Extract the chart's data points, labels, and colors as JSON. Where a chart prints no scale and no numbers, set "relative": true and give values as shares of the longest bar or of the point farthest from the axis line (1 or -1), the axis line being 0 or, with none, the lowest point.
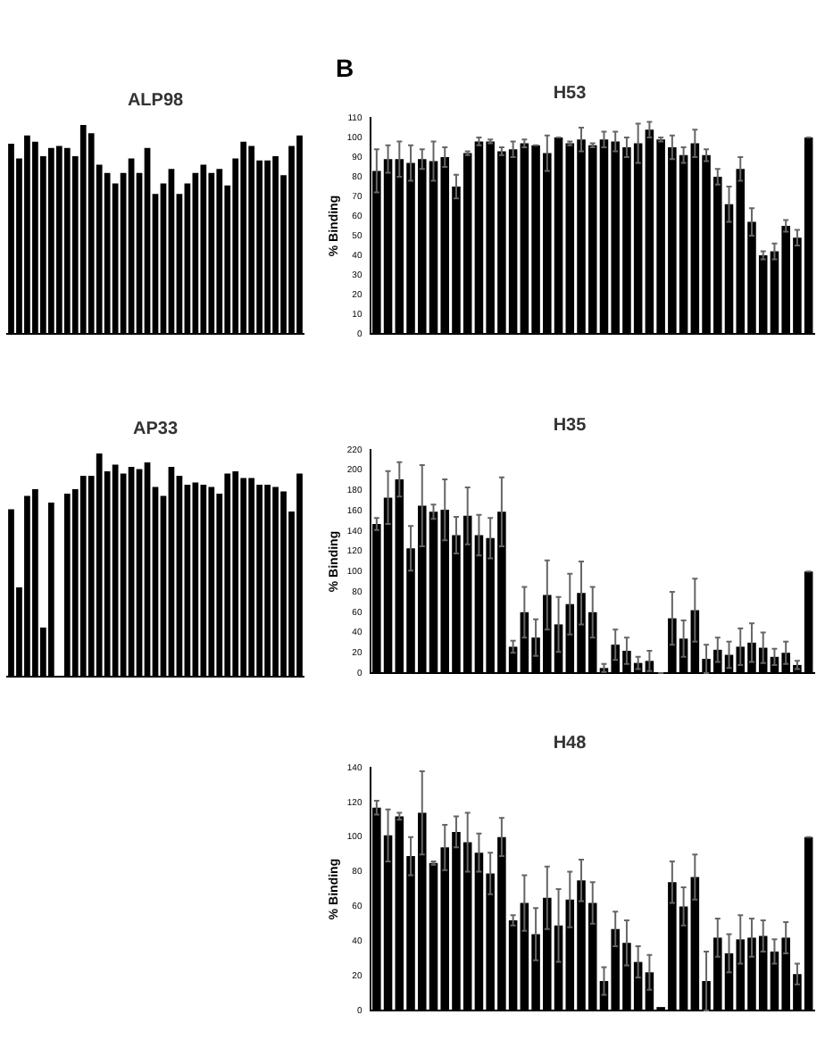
{
  "chart_data": [
    {
      "type": "bar",
      "title": "ALP98",
      "relative": true,
      "tick_labels": false,
      "grid": false,
      "legend": false,
      "categories": [
        null,
        null,
        null,
        null,
        null,
        null,
        null,
        null,
        null,
        null,
        null,
        null,
        null,
        null,
        null,
        null,
        null,
        null,
        null,
        null,
        null,
        null,
        null,
        null,
        null,
        null,
        null,
        null,
        null,
        null,
        null,
        null,
        null,
        null,
        null,
        null,
        null
      ],
      "series": [
        {
          "color": "#000000",
          "values": [
            0.91,
            0.84,
            0.95,
            0.92,
            0.85,
            0.89,
            0.9,
            0.89,
            0.85,
            1,
            0.96,
            0.81,
            0.77,
            0.72,
            0.77,
            0.84,
            0.77,
            0.89,
            0.67,
            0.72,
            0.79,
            0.67,
            0.72,
            0.77,
            0.81,
            0.77,
            0.79,
            0.71,
            0.84,
            0.92,
            0.9,
            0.83,
            0.83,
            0.85,
            0.76,
            0.9,
            0.95
          ]
        }
      ]
    },
    {
      "type": "bar",
      "title": "H53",
      "ylabel": "% Binding",
      "annotations": [
        "B"
      ],
      "tick_labels": "y",
      "grid": false,
      "legend": false,
      "ylim": [
        0,
        110
      ],
      "yticks": [
        0,
        10,
        20,
        30,
        40,
        50,
        60,
        70,
        80,
        90,
        100,
        110
      ],
      "categories": [
        null,
        null,
        null,
        null,
        null,
        null,
        null,
        null,
        null,
        null,
        null,
        null,
        null,
        null,
        null,
        null,
        null,
        null,
        null,
        null,
        null,
        null,
        null,
        null,
        null,
        null,
        null,
        null,
        null,
        null,
        null,
        null,
        null,
        null,
        null,
        null,
        null,
        null,
        null
      ],
      "series": [
        {
          "color": "#000000",
          "values": [
            83,
            89,
            89,
            87,
            89,
            88,
            90,
            75,
            92,
            98,
            98,
            93,
            94,
            97,
            96,
            92,
            100,
            97,
            99,
            96,
            99,
            98,
            95,
            97,
            104,
            99,
            95,
            91,
            97,
            91,
            80,
            66,
            84,
            57,
            40,
            42,
            55,
            49,
            100
          ],
          "errors": [
            11,
            7,
            9,
            9,
            5,
            10,
            5,
            6,
            1,
            2,
            1,
            2,
            4,
            2,
            0,
            9,
            0,
            1,
            6,
            1,
            4,
            5,
            5,
            10,
            4,
            1,
            6,
            4,
            7,
            3,
            4,
            9,
            6,
            7,
            2,
            4,
            3,
            4,
            0
          ]
        }
      ]
    },
    {
      "type": "bar",
      "title": "AP33",
      "relative": true,
      "tick_labels": false,
      "grid": false,
      "legend": false,
      "categories": [
        null,
        null,
        null,
        null,
        null,
        null,
        null,
        null,
        null,
        null,
        null,
        null,
        null,
        null,
        null,
        null,
        null,
        null,
        null,
        null,
        null,
        null,
        null,
        null,
        null,
        null,
        null,
        null,
        null,
        null,
        null,
        null,
        null,
        null,
        null,
        null,
        null
      ],
      "series": [
        {
          "color": "#000000",
          "values": [
            0.75,
            0.4,
            0.81,
            0.84,
            0.22,
            0.78,
            0,
            0.82,
            0.84,
            0.9,
            0.9,
            1,
            0.92,
            0.95,
            0.91,
            0.94,
            0.93,
            0.96,
            0.85,
            0.81,
            0.94,
            0.9,
            0.86,
            0.87,
            0.86,
            0.85,
            0.82,
            0.91,
            0.92,
            0.89,
            0.89,
            0.86,
            0.86,
            0.85,
            0.83,
            0.74,
            0.91
          ]
        }
      ]
    },
    {
      "type": "bar",
      "title": "H35",
      "ylabel": "% Binding",
      "tick_labels": "y",
      "grid": false,
      "legend": false,
      "ylim": [
        0,
        220
      ],
      "yticks": [
        0,
        20,
        40,
        60,
        80,
        100,
        120,
        140,
        160,
        180,
        200,
        220
      ],
      "categories": [
        null,
        null,
        null,
        null,
        null,
        null,
        null,
        null,
        null,
        null,
        null,
        null,
        null,
        null,
        null,
        null,
        null,
        null,
        null,
        null,
        null,
        null,
        null,
        null,
        null,
        null,
        null,
        null,
        null,
        null,
        null,
        null,
        null,
        null,
        null,
        null,
        null,
        null,
        null
      ],
      "series": [
        {
          "color": "#000000",
          "values": [
            147,
            173,
            191,
            123,
            165,
            159,
            161,
            136,
            155,
            136,
            133,
            159,
            26,
            60,
            35,
            77,
            48,
            68,
            79,
            60,
            5,
            28,
            22,
            10,
            12,
            0,
            54,
            34,
            62,
            14,
            23,
            18,
            26,
            30,
            25,
            16,
            20,
            8,
            100
          ],
          "errors": [
            6,
            26,
            17,
            22,
            40,
            7,
            30,
            18,
            28,
            20,
            20,
            34,
            6,
            25,
            18,
            34,
            27,
            30,
            31,
            25,
            4,
            15,
            13,
            6,
            10,
            0,
            26,
            18,
            31,
            14,
            12,
            13,
            18,
            19,
            15,
            8,
            11,
            4,
            0
          ]
        }
      ]
    },
    {
      "type": "bar",
      "title": "H48",
      "ylabel": "% Binding",
      "tick_labels": "y",
      "grid": false,
      "legend": false,
      "ylim": [
        0,
        140
      ],
      "yticks": [
        0,
        20,
        40,
        60,
        80,
        100,
        120,
        140
      ],
      "categories": [
        null,
        null,
        null,
        null,
        null,
        null,
        null,
        null,
        null,
        null,
        null,
        null,
        null,
        null,
        null,
        null,
        null,
        null,
        null,
        null,
        null,
        null,
        null,
        null,
        null,
        null,
        null,
        null,
        null,
        null,
        null,
        null,
        null,
        null,
        null,
        null,
        null,
        null,
        null
      ],
      "series": [
        {
          "color": "#000000",
          "values": [
            117,
            101,
            112,
            89,
            114,
            85,
            94,
            103,
            97,
            91,
            79,
            100,
            52,
            62,
            44,
            65,
            49,
            64,
            75,
            62,
            17,
            47,
            39,
            28,
            22,
            2,
            74,
            60,
            77,
            17,
            42,
            33,
            41,
            42,
            43,
            34,
            42,
            21,
            100
          ],
          "errors": [
            4,
            15,
            2,
            11,
            24,
            1,
            13,
            9,
            17,
            11,
            12,
            11,
            3,
            16,
            15,
            18,
            21,
            16,
            12,
            12,
            8,
            10,
            13,
            9,
            10,
            null,
            12,
            11,
            13,
            17,
            11,
            11,
            14,
            11,
            9,
            7,
            9,
            6,
            0
          ]
        }
      ]
    }
  ]
}
